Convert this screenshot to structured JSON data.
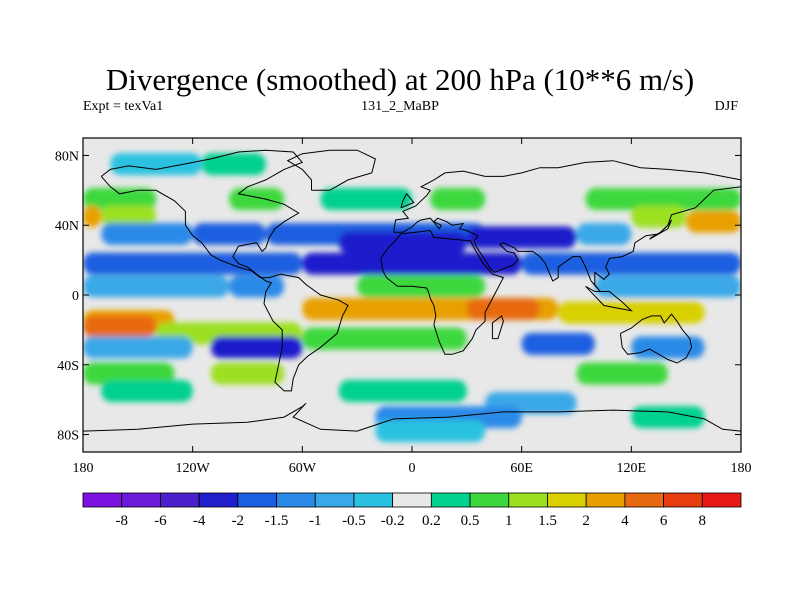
{
  "title": "Divergence (smoothed) at 200 hPa (10**6 m/s)",
  "subtitle_left": "Expt = texVa1",
  "subtitle_center": "131_2_MaBP",
  "subtitle_right": "DJF",
  "lat_ticks": [
    {
      "value": 80,
      "label": "80N"
    },
    {
      "value": 40,
      "label": "40N"
    },
    {
      "value": 0,
      "label": "0"
    },
    {
      "value": -40,
      "label": "40S"
    },
    {
      "value": -80,
      "label": "80S"
    }
  ],
  "lon_ticks": [
    {
      "value": -180,
      "label": "180"
    },
    {
      "value": -120,
      "label": "120W"
    },
    {
      "value": -60,
      "label": "60W"
    },
    {
      "value": 0,
      "label": "0"
    },
    {
      "value": 60,
      "label": "60E"
    },
    {
      "value": 120,
      "label": "120E"
    },
    {
      "value": 180,
      "label": "180"
    }
  ],
  "colorbar": {
    "labels": [
      "-8",
      "-6",
      "-4",
      "-2",
      "-1.5",
      "-1",
      "-0.5",
      "-0.2",
      "0.2",
      "0.5",
      "1",
      "1.5",
      "2",
      "4",
      "6",
      "8"
    ],
    "colors": [
      "#7b12e0",
      "#6a1bd8",
      "#4a22cc",
      "#1f1fcc",
      "#1b5fe0",
      "#2b8ae8",
      "#3aa8e8",
      "#2ac2e0",
      "#e8e8e8",
      "#00d090",
      "#3cd83c",
      "#9ce020",
      "#d8d000",
      "#e8a000",
      "#e86a10",
      "#e83c10",
      "#e81818"
    ]
  },
  "colors": {
    "neutral": "#e8e8e8",
    "frame": "#000000",
    "coast": "#000000"
  },
  "bands": [
    {
      "lat": 75,
      "lon": [
        -165,
        -115
      ],
      "level": 7
    },
    {
      "lat": 75,
      "lon": [
        -115,
        -80
      ],
      "level": 9
    },
    {
      "lat": 55,
      "lon": [
        -180,
        -140
      ],
      "level": 10
    },
    {
      "lat": 55,
      "lon": [
        -100,
        -70
      ],
      "level": 10
    },
    {
      "lat": 55,
      "lon": [
        -50,
        0
      ],
      "level": 9
    },
    {
      "lat": 55,
      "lon": [
        10,
        40
      ],
      "level": 10
    },
    {
      "lat": 55,
      "lon": [
        95,
        180
      ],
      "level": 10
    },
    {
      "lat": 45,
      "lon": [
        -180,
        -170
      ],
      "level": 13
    },
    {
      "lat": 45,
      "lon": [
        -170,
        -140
      ],
      "level": 11
    },
    {
      "lat": 45,
      "lon": [
        120,
        150
      ],
      "level": 11
    },
    {
      "lat": 42,
      "lon": [
        150,
        180
      ],
      "level": 13
    },
    {
      "lat": 35,
      "lon": [
        -170,
        -120
      ],
      "level": 5
    },
    {
      "lat": 35,
      "lon": [
        -120,
        -80
      ],
      "level": 4
    },
    {
      "lat": 35,
      "lon": [
        -80,
        40
      ],
      "level": 4
    },
    {
      "lat": 33,
      "lon": [
        30,
        90
      ],
      "level": 3
    },
    {
      "lat": 30,
      "lon": [
        -40,
        30
      ],
      "level": 3
    },
    {
      "lat": 35,
      "lon": [
        90,
        120
      ],
      "level": 6
    },
    {
      "lat": 18,
      "lon": [
        -180,
        -60
      ],
      "level": 4
    },
    {
      "lat": 18,
      "lon": [
        -60,
        60
      ],
      "level": 3
    },
    {
      "lat": 18,
      "lon": [
        60,
        180
      ],
      "level": 4
    },
    {
      "lat": 5,
      "lon": [
        -180,
        -100
      ],
      "level": 6
    },
    {
      "lat": 5,
      "lon": [
        -100,
        -70
      ],
      "level": 5
    },
    {
      "lat": 5,
      "lon": [
        -30,
        40
      ],
      "level": 10
    },
    {
      "lat": 5,
      "lon": [
        100,
        180
      ],
      "level": 6
    },
    {
      "lat": -8,
      "lon": [
        -60,
        80
      ],
      "level": 13
    },
    {
      "lat": -8,
      "lon": [
        30,
        70
      ],
      "level": 14
    },
    {
      "lat": -10,
      "lon": [
        80,
        160
      ],
      "level": 12
    },
    {
      "lat": -15,
      "lon": [
        -180,
        -130
      ],
      "level": 13
    },
    {
      "lat": -18,
      "lon": [
        -180,
        -140
      ],
      "level": 14
    },
    {
      "lat": -22,
      "lon": [
        -140,
        -60
      ],
      "level": 11
    },
    {
      "lat": -25,
      "lon": [
        -60,
        30
      ],
      "level": 10
    },
    {
      "lat": -30,
      "lon": [
        -180,
        -120
      ],
      "level": 6
    },
    {
      "lat": -30,
      "lon": [
        -110,
        -60
      ],
      "level": 3
    },
    {
      "lat": -28,
      "lon": [
        60,
        100
      ],
      "level": 4
    },
    {
      "lat": -30,
      "lon": [
        120,
        160
      ],
      "level": 5
    },
    {
      "lat": -45,
      "lon": [
        -180,
        -130
      ],
      "level": 10
    },
    {
      "lat": -45,
      "lon": [
        -110,
        -70
      ],
      "level": 11
    },
    {
      "lat": -45,
      "lon": [
        90,
        140
      ],
      "level": 10
    },
    {
      "lat": -55,
      "lon": [
        -170,
        -120
      ],
      "level": 9
    },
    {
      "lat": -55,
      "lon": [
        -40,
        30
      ],
      "level": 9
    },
    {
      "lat": -62,
      "lon": [
        40,
        90
      ],
      "level": 6
    },
    {
      "lat": -70,
      "lon": [
        -20,
        60
      ],
      "level": 5
    },
    {
      "lat": -70,
      "lon": [
        120,
        160
      ],
      "level": 9
    },
    {
      "lat": -78,
      "lon": [
        -20,
        40
      ],
      "level": 7
    }
  ],
  "coastlines": [
    [
      [
        -170,
        68
      ],
      [
        -165,
        72
      ],
      [
        -155,
        74
      ],
      [
        -140,
        72
      ],
      [
        -125,
        75
      ],
      [
        -110,
        78
      ],
      [
        -95,
        82
      ],
      [
        -80,
        83
      ],
      [
        -65,
        82
      ],
      [
        -60,
        76
      ],
      [
        -70,
        72
      ],
      [
        -80,
        66
      ],
      [
        -90,
        62
      ],
      [
        -95,
        58
      ],
      [
        -80,
        55
      ],
      [
        -70,
        52
      ],
      [
        -62,
        47
      ],
      [
        -70,
        42
      ],
      [
        -75,
        38
      ],
      [
        -78,
        33
      ],
      [
        -80,
        27
      ],
      [
        -82,
        25
      ],
      [
        -85,
        30
      ],
      [
        -90,
        29
      ],
      [
        -95,
        28
      ],
      [
        -98,
        22
      ],
      [
        -95,
        18
      ],
      [
        -90,
        16
      ],
      [
        -85,
        12
      ],
      [
        -80,
        8
      ],
      [
        -77,
        7
      ],
      [
        -80,
        2
      ],
      [
        -81,
        -5
      ],
      [
        -76,
        -15
      ],
      [
        -71,
        -20
      ],
      [
        -71,
        -30
      ],
      [
        -73,
        -40
      ],
      [
        -75,
        -50
      ],
      [
        -70,
        -55
      ],
      [
        -66,
        -55
      ],
      [
        -65,
        -48
      ],
      [
        -62,
        -40
      ],
      [
        -57,
        -35
      ],
      [
        -50,
        -30
      ],
      [
        -41,
        -22
      ],
      [
        -38,
        -12
      ],
      [
        -35,
        -6
      ],
      [
        -40,
        -3
      ],
      [
        -50,
        0
      ],
      [
        -58,
        6
      ],
      [
        -62,
        10
      ],
      [
        -72,
        12
      ],
      [
        -78,
        10
      ],
      [
        -83,
        10
      ],
      [
        -88,
        14
      ],
      [
        -92,
        15
      ],
      [
        -95,
        16
      ],
      [
        -105,
        20
      ],
      [
        -110,
        23
      ],
      [
        -115,
        30
      ],
      [
        -120,
        34
      ],
      [
        -124,
        40
      ],
      [
        -124,
        48
      ],
      [
        -130,
        54
      ],
      [
        -140,
        60
      ],
      [
        -150,
        60
      ],
      [
        -160,
        58
      ],
      [
        -165,
        62
      ],
      [
        -170,
        68
      ]
    ],
    [
      [
        -55,
        60
      ],
      [
        -45,
        60
      ],
      [
        -35,
        66
      ],
      [
        -22,
        70
      ],
      [
        -20,
        78
      ],
      [
        -30,
        83
      ],
      [
        -45,
        83
      ],
      [
        -60,
        81
      ],
      [
        -68,
        77
      ],
      [
        -60,
        72
      ],
      [
        -55,
        66
      ],
      [
        -55,
        60
      ]
    ],
    [
      [
        -10,
        36
      ],
      [
        -9,
        43
      ],
      [
        -2,
        44
      ],
      [
        -5,
        48
      ],
      [
        2,
        51
      ],
      [
        5,
        54
      ],
      [
        8,
        57
      ],
      [
        10,
        60
      ],
      [
        5,
        62
      ],
      [
        12,
        66
      ],
      [
        18,
        70
      ],
      [
        28,
        71
      ],
      [
        40,
        68
      ],
      [
        50,
        68
      ],
      [
        60,
        70
      ],
      [
        70,
        73
      ],
      [
        80,
        73
      ],
      [
        95,
        76
      ],
      [
        110,
        77
      ],
      [
        125,
        73
      ],
      [
        140,
        72
      ],
      [
        160,
        70
      ],
      [
        175,
        67
      ],
      [
        180,
        66
      ],
      [
        180,
        62
      ],
      [
        165,
        60
      ],
      [
        160,
        55
      ],
      [
        155,
        50
      ],
      [
        142,
        46
      ],
      [
        140,
        40
      ],
      [
        135,
        35
      ],
      [
        128,
        34
      ],
      [
        122,
        30
      ],
      [
        121,
        25
      ],
      [
        115,
        22
      ],
      [
        108,
        21
      ],
      [
        106,
        16
      ],
      [
        108,
        12
      ],
      [
        105,
        9
      ],
      [
        100,
        13
      ],
      [
        100,
        6
      ],
      [
        103,
        2
      ],
      [
        98,
        8
      ],
      [
        95,
        16
      ],
      [
        92,
        22
      ],
      [
        88,
        22
      ],
      [
        80,
        16
      ],
      [
        80,
        10
      ],
      [
        77,
        8
      ],
      [
        73,
        18
      ],
      [
        70,
        22
      ],
      [
        66,
        25
      ],
      [
        58,
        25
      ],
      [
        56,
        27
      ],
      [
        50,
        30
      ],
      [
        48,
        29
      ],
      [
        52,
        25
      ],
      [
        56,
        24
      ],
      [
        58,
        20
      ],
      [
        55,
        17
      ],
      [
        45,
        13
      ],
      [
        43,
        15
      ],
      [
        40,
        20
      ],
      [
        35,
        28
      ],
      [
        34,
        31
      ],
      [
        36,
        34
      ],
      [
        30,
        37
      ],
      [
        26,
        38
      ],
      [
        28,
        41
      ],
      [
        22,
        40
      ],
      [
        19,
        42
      ],
      [
        14,
        44
      ],
      [
        12,
        42
      ],
      [
        16,
        40
      ],
      [
        15,
        38
      ],
      [
        10,
        44
      ],
      [
        5,
        43
      ],
      [
        3,
        42
      ],
      [
        0,
        39
      ],
      [
        -5,
        36
      ],
      [
        -10,
        36
      ]
    ],
    [
      [
        -17,
        21
      ],
      [
        -16,
        14
      ],
      [
        -14,
        10
      ],
      [
        -8,
        5
      ],
      [
        0,
        5
      ],
      [
        8,
        4
      ],
      [
        9,
        2
      ],
      [
        10,
        -2
      ],
      [
        12,
        -6
      ],
      [
        13,
        -12
      ],
      [
        12,
        -17
      ],
      [
        15,
        -27
      ],
      [
        18,
        -34
      ],
      [
        22,
        -34
      ],
      [
        28,
        -32
      ],
      [
        33,
        -25
      ],
      [
        35,
        -20
      ],
      [
        40,
        -15
      ],
      [
        40,
        -10
      ],
      [
        44,
        -2
      ],
      [
        50,
        10
      ],
      [
        44,
        12
      ],
      [
        39,
        18
      ],
      [
        34,
        27
      ],
      [
        32,
        31
      ],
      [
        22,
        32
      ],
      [
        12,
        33
      ],
      [
        10,
        37
      ],
      [
        2,
        36
      ],
      [
        -6,
        35
      ],
      [
        -10,
        30
      ],
      [
        -13,
        27
      ],
      [
        -17,
        21
      ]
    ],
    [
      [
        114,
        -22
      ],
      [
        120,
        -19
      ],
      [
        126,
        -14
      ],
      [
        131,
        -12
      ],
      [
        136,
        -12
      ],
      [
        138,
        -16
      ],
      [
        142,
        -11
      ],
      [
        145,
        -15
      ],
      [
        148,
        -20
      ],
      [
        152,
        -25
      ],
      [
        153,
        -30
      ],
      [
        150,
        -36
      ],
      [
        145,
        -39
      ],
      [
        140,
        -37
      ],
      [
        135,
        -34
      ],
      [
        130,
        -31
      ],
      [
        125,
        -33
      ],
      [
        118,
        -34
      ],
      [
        115,
        -30
      ],
      [
        114,
        -22
      ]
    ],
    [
      [
        44,
        -25
      ],
      [
        47,
        -25
      ],
      [
        50,
        -15
      ],
      [
        49,
        -12
      ],
      [
        44,
        -16
      ],
      [
        44,
        -25
      ]
    ],
    [
      [
        -180,
        -78
      ],
      [
        -150,
        -77
      ],
      [
        -120,
        -74
      ],
      [
        -90,
        -73
      ],
      [
        -70,
        -70
      ],
      [
        -60,
        -64
      ],
      [
        -58,
        -62
      ],
      [
        -65,
        -70
      ],
      [
        -50,
        -77
      ],
      [
        -30,
        -78
      ],
      [
        -10,
        -71
      ],
      [
        20,
        -70
      ],
      [
        50,
        -67
      ],
      [
        80,
        -67
      ],
      [
        110,
        -66
      ],
      [
        140,
        -67
      ],
      [
        160,
        -71
      ],
      [
        170,
        -77
      ],
      [
        180,
        -78
      ]
    ],
    [
      [
        95,
        5
      ],
      [
        105,
        -6
      ],
      [
        115,
        -8
      ],
      [
        120,
        -9
      ],
      [
        115,
        -4
      ],
      [
        108,
        2
      ],
      [
        100,
        2
      ],
      [
        95,
        5
      ]
    ],
    [
      [
        130,
        32
      ],
      [
        135,
        35
      ],
      [
        140,
        38
      ],
      [
        142,
        43
      ],
      [
        140,
        40
      ],
      [
        136,
        36
      ],
      [
        131,
        33
      ],
      [
        130,
        32
      ]
    ],
    [
      [
        -6,
        50
      ],
      [
        -5,
        54
      ],
      [
        -3,
        58
      ],
      [
        1,
        53
      ],
      [
        -6,
        50
      ]
    ]
  ]
}
